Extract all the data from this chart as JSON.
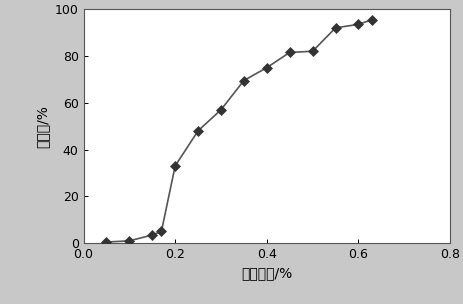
{
  "x": [
    0.05,
    0.1,
    0.15,
    0.17,
    0.2,
    0.25,
    0.3,
    0.35,
    0.4,
    0.45,
    0.5,
    0.55,
    0.6,
    0.63
  ],
  "y": [
    0.5,
    1.0,
    3.5,
    5.0,
    33.0,
    48.0,
    57.0,
    69.5,
    75.0,
    81.5,
    82.0,
    92.0,
    93.5,
    95.5
  ],
  "xlabel": "单体浓度/%",
  "ylabel": "接枝率/%",
  "xlim": [
    0,
    0.8
  ],
  "ylim": [
    0,
    100
  ],
  "xticks": [
    0.0,
    0.2,
    0.4,
    0.6,
    0.8
  ],
  "yticks": [
    0,
    20,
    40,
    60,
    80,
    100
  ],
  "line_color": "#555555",
  "marker": "D",
  "marker_color": "#333333",
  "marker_size": 5,
  "figure_bg": "#c8c8c8",
  "axes_bg": "#ffffff",
  "xlabel_fontsize": 10,
  "ylabel_fontsize": 10,
  "tick_fontsize": 9,
  "linewidth": 1.2
}
